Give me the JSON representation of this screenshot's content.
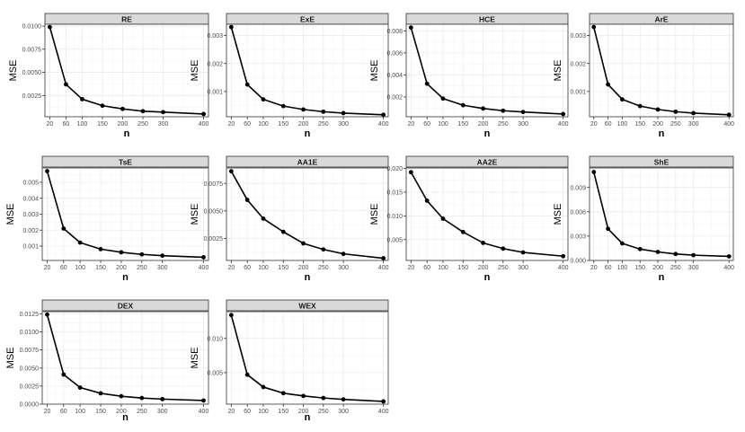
{
  "x_axis_label": "n",
  "y_axis_label": "MSE",
  "x_ticks": [
    20,
    60,
    100,
    150,
    200,
    250,
    300,
    400
  ],
  "colors": {
    "strip": "#d9d9d9",
    "grid": "#ebebeb",
    "frame": "#333333",
    "line": "#000000",
    "point": "#000000"
  },
  "chart_data": [
    {
      "type": "line",
      "title": "RE",
      "xlabel": "n",
      "ylabel": "MSE",
      "x": [
        20,
        60,
        100,
        150,
        200,
        250,
        300,
        400
      ],
      "series": [
        {
          "values": [
            0.0099,
            0.0037,
            0.0021,
            0.0014,
            0.00105,
            0.0008,
            0.0007,
            0.0005
          ]
        }
      ],
      "ylim": [
        0.0002,
        0.0102
      ],
      "yticks": [
        "0.0025",
        "0.0050",
        "0.0075",
        "0.0100"
      ],
      "grid": true
    },
    {
      "type": "line",
      "title": "ExE",
      "xlabel": "n",
      "ylabel": "MSE",
      "x": [
        20,
        60,
        100,
        150,
        200,
        250,
        300,
        400
      ],
      "series": [
        {
          "values": [
            0.0033,
            0.00125,
            0.00072,
            0.00048,
            0.00036,
            0.00028,
            0.00023,
            0.00017
          ]
        }
      ],
      "ylim": [
        0.0001,
        0.0034
      ],
      "yticks": [
        "0.001",
        "0.002",
        "0.003"
      ],
      "grid": true
    },
    {
      "type": "line",
      "title": "HCE",
      "xlabel": "n",
      "ylabel": "MSE",
      "x": [
        20,
        60,
        100,
        150,
        200,
        250,
        300,
        400
      ],
      "series": [
        {
          "values": [
            0.0083,
            0.0032,
            0.00185,
            0.00125,
            0.00095,
            0.00075,
            0.00063,
            0.00045
          ]
        }
      ],
      "ylim": [
        0.0002,
        0.0086
      ],
      "yticks": [
        "0.002",
        "0.004",
        "0.006",
        "0.008"
      ],
      "grid": true
    },
    {
      "type": "line",
      "title": "ArE",
      "xlabel": "n",
      "ylabel": "MSE",
      "x": [
        20,
        60,
        100,
        150,
        200,
        250,
        300,
        400
      ],
      "series": [
        {
          "values": [
            0.0033,
            0.00125,
            0.00072,
            0.00048,
            0.00036,
            0.00028,
            0.00023,
            0.00017
          ]
        }
      ],
      "ylim": [
        0.0001,
        0.0034
      ],
      "yticks": [
        "0.001",
        "0.002",
        "0.003"
      ],
      "grid": true
    },
    {
      "type": "line",
      "title": "TsE",
      "xlabel": "n",
      "ylabel": "MSE",
      "x": [
        20,
        60,
        100,
        150,
        200,
        250,
        300,
        400
      ],
      "series": [
        {
          "values": [
            0.0057,
            0.0021,
            0.00122,
            0.00081,
            0.00061,
            0.00048,
            0.0004,
            0.0003
          ]
        }
      ],
      "ylim": [
        0.0001,
        0.0059
      ],
      "yticks": [
        "0.001",
        "0.002",
        "0.003",
        "0.004",
        "0.005"
      ],
      "grid": true
    },
    {
      "type": "line",
      "title": "AA1E",
      "xlabel": "n",
      "ylabel": "MSE",
      "x": [
        20,
        60,
        100,
        150,
        200,
        250,
        300,
        400
      ],
      "series": [
        {
          "values": [
            0.0086,
            0.006,
            0.0043,
            0.0031,
            0.00205,
            0.0015,
            0.0011,
            0.0007
          ]
        }
      ],
      "ylim": [
        0.0005,
        0.0089
      ],
      "yticks": [
        "0.0025",
        "0.0050",
        "0.0075"
      ],
      "grid": true
    },
    {
      "type": "line",
      "title": "AA2E",
      "xlabel": "n",
      "ylabel": "MSE",
      "x": [
        20,
        60,
        100,
        150,
        200,
        250,
        300,
        400
      ],
      "series": [
        {
          "values": [
            0.0192,
            0.0132,
            0.0094,
            0.0066,
            0.0043,
            0.0031,
            0.0023,
            0.0015
          ]
        }
      ],
      "ylim": [
        0.0006,
        0.0201
      ],
      "yticks": [
        "0.005",
        "0.010",
        "0.015",
        "0.020"
      ],
      "grid": true
    },
    {
      "type": "line",
      "title": "ShE",
      "xlabel": "n",
      "ylabel": "MSE",
      "x": [
        20,
        60,
        100,
        150,
        200,
        250,
        300,
        400
      ],
      "series": [
        {
          "values": [
            0.0109,
            0.0039,
            0.0021,
            0.0014,
            0.00105,
            0.0008,
            0.00065,
            0.0005
          ]
        }
      ],
      "ylim": [
        0.0,
        0.0114
      ],
      "yticks": [
        "0.000",
        "0.003",
        "0.006",
        "0.009"
      ],
      "grid": true
    },
    {
      "type": "line",
      "title": "DEX",
      "xlabel": "n",
      "ylabel": "MSE",
      "x": [
        20,
        60,
        100,
        150,
        200,
        250,
        300,
        400
      ],
      "series": [
        {
          "values": [
            0.0124,
            0.0041,
            0.0023,
            0.0015,
            0.0011,
            0.00085,
            0.0007,
            0.0005
          ]
        }
      ],
      "ylim": [
        0.0,
        0.0128
      ],
      "yticks": [
        "0.0000",
        "0.0025",
        "0.0050",
        "0.0075",
        "0.0100",
        "0.0125"
      ],
      "grid": true
    },
    {
      "type": "line",
      "title": "WEX",
      "xlabel": "n",
      "ylabel": "MSE",
      "x": [
        20,
        60,
        100,
        150,
        200,
        250,
        300,
        400
      ],
      "series": [
        {
          "values": [
            0.0134,
            0.0047,
            0.0029,
            0.002,
            0.0016,
            0.0013,
            0.0011,
            0.0008
          ]
        }
      ],
      "ylim": [
        0.0004,
        0.0139
      ],
      "yticks": [
        "0.005",
        "0.010"
      ],
      "grid": true
    }
  ]
}
